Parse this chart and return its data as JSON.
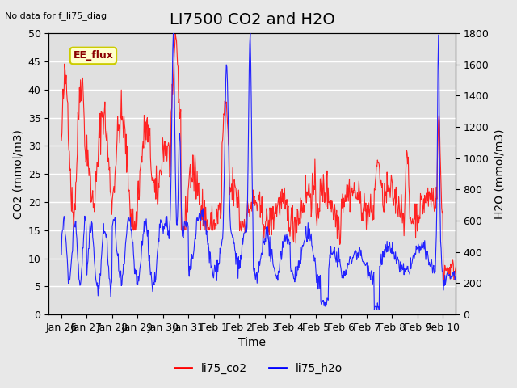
{
  "title": "LI7500 CO2 and H2O",
  "top_left_text": "No data for f_li75_diag",
  "xlabel": "Time",
  "ylabel_left": "CO2 (mmol/m3)",
  "ylabel_right": "H2O (mmol/m3)",
  "ylim_left": [
    0,
    50
  ],
  "ylim_right": [
    0,
    1800
  ],
  "xtick_labels": [
    "Jan 26",
    "Jan 27",
    "Jan 28",
    "Jan 29",
    "Jan 30",
    "Jan 31",
    "Feb 1",
    "Feb 2",
    "Feb 3",
    "Feb 4",
    "Feb 5",
    "Feb 6",
    "Feb 7",
    "Feb 8",
    "Feb 9",
    "Feb 10"
  ],
  "legend_labels": [
    "li75_co2",
    "li75_h2o"
  ],
  "legend_colors": [
    "red",
    "blue"
  ],
  "co2_color": "#ff2222",
  "h2o_color": "#2222ff",
  "bg_color": "#e8e8e8",
  "plot_bg_color": "#e0e0e0",
  "ee_flux_label": "EE_flux",
  "ee_flux_bg": "#ffffcc",
  "ee_flux_border": "#cccc00",
  "grid_color": "white",
  "title_fontsize": 14,
  "label_fontsize": 10,
  "tick_fontsize": 9
}
